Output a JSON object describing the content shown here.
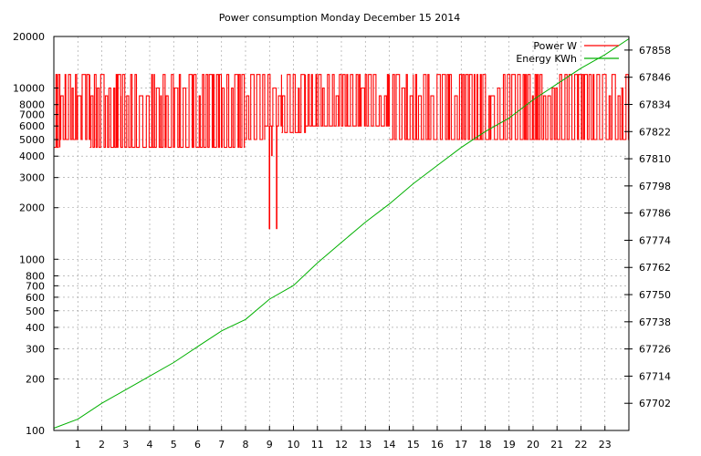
{
  "chart_data": {
    "type": "line",
    "title": "Power consumption Monday December 15 2014",
    "x": {
      "range": [
        0,
        24
      ],
      "tick_values": [
        1,
        2,
        3,
        4,
        5,
        6,
        7,
        8,
        9,
        10,
        11,
        12,
        13,
        14,
        15,
        16,
        17,
        18,
        19,
        20,
        21,
        22,
        23
      ],
      "grid": true
    },
    "y_left": {
      "scale": "log",
      "range": [
        100,
        20000
      ],
      "ticks": [
        {
          "value": 100,
          "label": "100"
        },
        {
          "value": 200,
          "label": "200"
        },
        {
          "value": 300,
          "label": "300"
        },
        {
          "value": 400,
          "label": "400"
        },
        {
          "value": 500,
          "label": "500"
        },
        {
          "value": 600,
          "label": "600"
        },
        {
          "value": 700,
          "label": "700"
        },
        {
          "value": 800,
          "label": "800"
        },
        {
          "value": 1000,
          "label": "1000"
        },
        {
          "value": 2000,
          "label": "2000"
        },
        {
          "value": 3000,
          "label": "3000"
        },
        {
          "value": 4000,
          "label": "4000"
        },
        {
          "value": 5000,
          "label": "5000"
        },
        {
          "value": 6000,
          "label": "6000"
        },
        {
          "value": 7000,
          "label": "7000"
        },
        {
          "value": 8000,
          "label": "8000"
        },
        {
          "value": 10000,
          "label": "10000"
        },
        {
          "value": 20000,
          "label": "20000"
        }
      ]
    },
    "y_right": {
      "scale": "linear",
      "range": [
        67690,
        67864
      ],
      "ticks": [
        67702,
        67714,
        67726,
        67738,
        67750,
        67762,
        67774,
        67786,
        67798,
        67810,
        67822,
        67834,
        67846,
        67858
      ]
    },
    "legend": {
      "position": "top-right",
      "entries": [
        {
          "name": "Power W",
          "color": "#ff0000"
        },
        {
          "name": "Energy KWh",
          "color": "#00b000"
        }
      ]
    },
    "series": [
      {
        "name": "Power W",
        "axis": "left",
        "color": "#ff0000",
        "segments": [
          {
            "x0": 0.0,
            "x1": 0.25,
            "level": 4500
          },
          {
            "x0": 0.25,
            "x1": 0.5,
            "level": 5000
          },
          {
            "x0": 0.5,
            "x1": 1.5,
            "level": 5000
          },
          {
            "x0": 1.5,
            "x1": 2.8,
            "level": 4500
          },
          {
            "x0": 2.8,
            "x1": 4.2,
            "level": 4500
          },
          {
            "x0": 4.2,
            "x1": 5.8,
            "level": 4500
          },
          {
            "x0": 5.8,
            "x1": 7.3,
            "level": 4500
          },
          {
            "x0": 7.3,
            "x1": 7.95,
            "level": 4500
          },
          {
            "x0": 7.95,
            "x1": 8.8,
            "level": 5000
          },
          {
            "x0": 8.8,
            "x1": 9.5,
            "level": 6000
          },
          {
            "x0": 9.5,
            "x1": 10.5,
            "level": 5500
          },
          {
            "x0": 10.5,
            "x1": 14.0,
            "level": 6000
          },
          {
            "x0": 14.0,
            "x1": 15.0,
            "level": 5000
          },
          {
            "x0": 15.0,
            "x1": 24.0,
            "level": 5000
          }
        ],
        "dips": [
          {
            "x": 9.0,
            "value": 1500
          },
          {
            "x": 9.1,
            "value": 4000
          },
          {
            "x": 9.3,
            "value": 1500
          }
        ]
      },
      {
        "name": "Energy KWh",
        "axis": "right",
        "color": "#00b000",
        "x": [
          0.0,
          1.0,
          2.0,
          3.0,
          4.0,
          5.0,
          6.0,
          7.0,
          8.0,
          9.0,
          10.0,
          11.0,
          12.0,
          13.0,
          14.0,
          15.0,
          16.0,
          17.0,
          18.0,
          19.0,
          20.0,
          21.0,
          22.0,
          23.0,
          24.0
        ],
        "values": [
          67691,
          67695,
          67702,
          67708,
          67714,
          67720,
          67727,
          67734,
          67739,
          67748,
          67754,
          67764,
          67773,
          67782,
          67790,
          67799,
          67807,
          67815,
          67822,
          67828,
          67836,
          67843,
          67850,
          67856,
          67863
        ]
      }
    ]
  }
}
